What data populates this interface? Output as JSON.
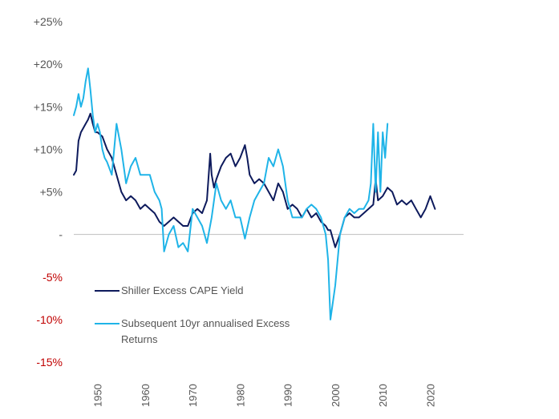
{
  "chart_data": {
    "type": "line",
    "title": "",
    "xlabel": "",
    "ylabel": "",
    "xlim": [
      1945,
      2027
    ],
    "ylim": [
      -15,
      25
    ],
    "y_ticks": [
      {
        "value": 25,
        "label": "+25%"
      },
      {
        "value": 20,
        "label": "+20%"
      },
      {
        "value": 15,
        "label": "+15%"
      },
      {
        "value": 10,
        "label": "+10%"
      },
      {
        "value": 5,
        "label": "+5%"
      },
      {
        "value": 0,
        "label": "-"
      },
      {
        "value": -5,
        "label": "-5%"
      },
      {
        "value": -10,
        "label": "-10%"
      },
      {
        "value": -15,
        "label": "-15%"
      }
    ],
    "x_ticks": [
      {
        "value": 1950,
        "label": "1950"
      },
      {
        "value": 1960,
        "label": "1960"
      },
      {
        "value": 1970,
        "label": "1970"
      },
      {
        "value": 1980,
        "label": "1980"
      },
      {
        "value": 1990,
        "label": "1990"
      },
      {
        "value": 2000,
        "label": "2000"
      },
      {
        "value": 2010,
        "label": "2010"
      },
      {
        "value": 2020,
        "label": "2020"
      }
    ],
    "legend": {
      "placement": "bottom-left",
      "entries": [
        {
          "name": "Shiller Excess CAPE Yield",
          "lines": [
            "Shiller Excess CAPE Yield"
          ],
          "color": "#0d1a5c"
        },
        {
          "name": "Subsequent 10yr annualised Excess Returns",
          "lines": [
            "Subsequent 10yr annualised Excess",
            "Returns"
          ],
          "color": "#1fb4e8"
        }
      ]
    },
    "series": [
      {
        "name": "Shiller Excess CAPE Yield",
        "color": "#0d1a5c",
        "x": [
          1945,
          1945.5,
          1946,
          1946.5,
          1947,
          1947.5,
          1948,
          1948.5,
          1949,
          1949.5,
          1950,
          1951,
          1952,
          1953,
          1954,
          1955,
          1956,
          1957,
          1958,
          1959,
          1960,
          1961,
          1962,
          1963,
          1964,
          1965,
          1966,
          1967,
          1968,
          1969,
          1970,
          1971,
          1972,
          1973,
          1973.7,
          1974,
          1974.5,
          1975,
          1976,
          1977,
          1978,
          1979,
          1980,
          1981,
          1981.5,
          1982,
          1983,
          1984,
          1985,
          1986,
          1987,
          1988,
          1989,
          1990,
          1991,
          1992,
          1993,
          1994,
          1995,
          1996,
          1997,
          1998,
          1998.5,
          1999,
          2000,
          2001,
          2002,
          2003,
          2004,
          2005,
          2006,
          2007,
          2008,
          2008.5,
          2009,
          2010,
          2011,
          2012,
          2013,
          2014,
          2015,
          2016,
          2017,
          2018,
          2019,
          2020,
          2021
        ],
        "values": [
          7,
          7.5,
          11,
          12,
          12.5,
          13,
          13.5,
          14.2,
          13,
          12,
          12,
          11.5,
          10,
          9,
          7,
          5,
          4,
          4.5,
          4,
          3,
          3.5,
          3,
          2.5,
          1.5,
          1,
          1.5,
          2,
          1.5,
          1,
          1,
          2.5,
          3,
          2.5,
          4,
          9.5,
          7,
          5.5,
          6.5,
          8,
          9,
          9.5,
          8,
          9,
          10.5,
          9,
          7,
          6,
          6.5,
          6,
          5,
          4,
          6,
          5,
          3,
          3.5,
          3,
          2,
          3,
          2,
          2.5,
          1.5,
          1,
          0.5,
          0.5,
          -1.5,
          0,
          2,
          2.5,
          2,
          2,
          2.5,
          3,
          3.5,
          6.5,
          4,
          4.5,
          5.5,
          5,
          3.5,
          4,
          3.5,
          4,
          3,
          2,
          3,
          4.5,
          3
        ]
      },
      {
        "name": "Subsequent 10yr annualised Excess Returns",
        "color": "#1fb4e8",
        "x": [
          1945,
          1945.5,
          1946,
          1946.5,
          1947,
          1947.5,
          1948,
          1948.5,
          1949,
          1949.5,
          1950,
          1950.5,
          1951,
          1951.5,
          1952,
          1953,
          1954,
          1955,
          1956,
          1957,
          1958,
          1959,
          1960,
          1961,
          1962,
          1963,
          1963.5,
          1964,
          1965,
          1966,
          1967,
          1968,
          1969,
          1970,
          1971,
          1972,
          1973,
          1974,
          1975,
          1976,
          1977,
          1978,
          1979,
          1980,
          1981,
          1982,
          1983,
          1984,
          1985,
          1986,
          1987,
          1988,
          1989,
          1990,
          1991,
          1992,
          1993,
          1994,
          1995,
          1996,
          1997,
          1998,
          1998.5,
          1999,
          2000,
          2001,
          2002,
          2003,
          2004,
          2005,
          2006,
          2007,
          2007.5,
          2008,
          2008.5,
          2009,
          2009.5,
          2010,
          2010.5,
          2011
        ],
        "values": [
          14,
          15,
          16.5,
          15,
          16,
          18,
          19.5,
          17,
          14,
          12,
          13,
          12,
          10,
          9,
          8.5,
          7,
          13,
          10,
          6,
          8,
          9,
          7,
          7,
          7,
          5,
          4,
          3,
          -2,
          0,
          1,
          -1.5,
          -1,
          -2,
          3,
          2,
          1,
          -1,
          2,
          6,
          4,
          3,
          4,
          2,
          2,
          -0.5,
          2,
          4,
          5,
          6,
          9,
          8,
          10,
          8,
          4,
          2,
          2,
          2,
          3,
          3.5,
          3,
          2,
          0,
          -3,
          -10,
          -6,
          0,
          2,
          3,
          2.5,
          3,
          3,
          4,
          6,
          13,
          5,
          12,
          5,
          12,
          9,
          13
        ]
      }
    ]
  }
}
